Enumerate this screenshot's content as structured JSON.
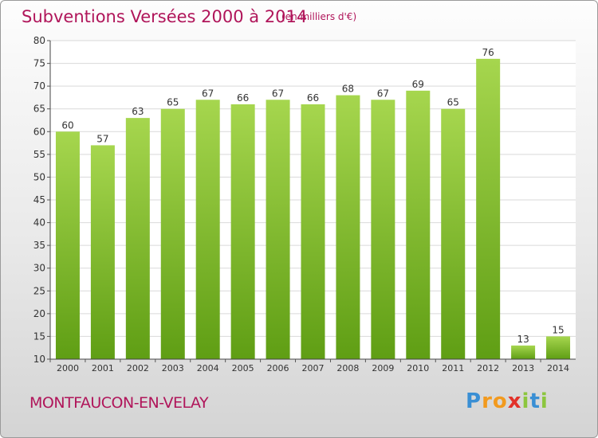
{
  "title": "Subventions Versées 2000 à 2014",
  "subtitle": "(en milliers d'€)",
  "commune": "MONTFAUCON-EN-VELAY",
  "logo": {
    "letters": [
      "P",
      "r",
      "o",
      "x",
      "i",
      "t",
      "i"
    ],
    "colors": [
      "#3a8fd4",
      "#f29a1e",
      "#f29a1e",
      "#e2322a",
      "#8cc63e",
      "#3a8fd4",
      "#8cc63e"
    ]
  },
  "colors": {
    "bar_top": "#a6d64e",
    "bar_bottom": "#5f9e14",
    "accent": "#b0155a"
  },
  "chart_data": {
    "type": "bar",
    "categories": [
      "2000",
      "2001",
      "2002",
      "2003",
      "2004",
      "2005",
      "2006",
      "2007",
      "2008",
      "2009",
      "2010",
      "2011",
      "2012",
      "2013",
      "2014"
    ],
    "values": [
      60,
      57,
      63,
      65,
      67,
      66,
      67,
      66,
      68,
      67,
      69,
      65,
      76,
      13,
      15
    ],
    "ylim": [
      10,
      80
    ],
    "yticks": [
      10,
      15,
      20,
      25,
      30,
      35,
      40,
      45,
      50,
      55,
      60,
      65,
      70,
      75,
      80
    ],
    "grid": true,
    "legend": "none"
  }
}
